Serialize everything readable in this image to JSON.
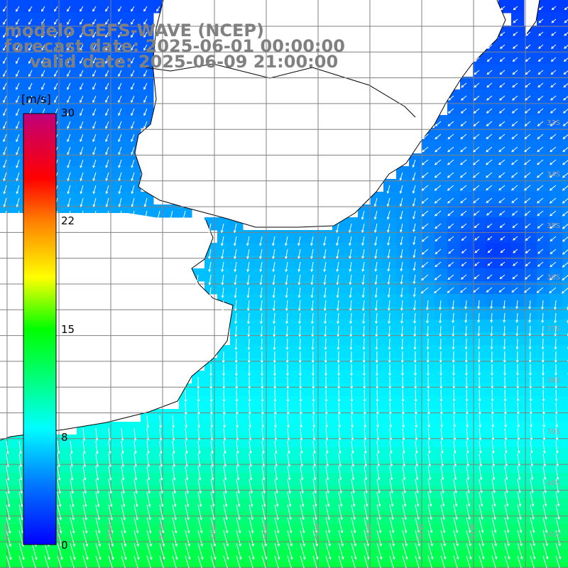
{
  "header": {
    "model": "modelo GEFS-WAVE (NCEP)",
    "forecast": "forecast date: 2025-06-01 00:00:00",
    "valid": "valid date: 2025-06-09 21:00:00"
  },
  "colorbar": {
    "unit": "[m/s]",
    "ticks": [
      "30",
      "22",
      "15",
      "8",
      "0"
    ],
    "tick_values": [
      30,
      22,
      15,
      8,
      0
    ],
    "colors": [
      "#0000ff",
      "#0070ff",
      "#00c8ff",
      "#00ffff",
      "#00ff80",
      "#00ff00",
      "#80ff00",
      "#ffff00",
      "#ffa000",
      "#ff4000",
      "#ff0000",
      "#e0006a",
      "#c0007a"
    ]
  },
  "axes": {
    "lat_labels": [
      "33S",
      "34S",
      "35S",
      "36S",
      "37S",
      "38S",
      "39S",
      "40S",
      "41S"
    ],
    "lon_labels": [
      "60W",
      "59W",
      "58W",
      "57W",
      "56W",
      "55W",
      "54W",
      "53W",
      "52W",
      "51W"
    ]
  },
  "field": {
    "variable": "wind speed",
    "units": "m/s",
    "min_value": 0,
    "max_value": 30
  },
  "colors": {
    "land": "#ffffff",
    "coast": "#000000",
    "grid": "#808080",
    "vector": "#ffffff",
    "title": "#808080"
  }
}
